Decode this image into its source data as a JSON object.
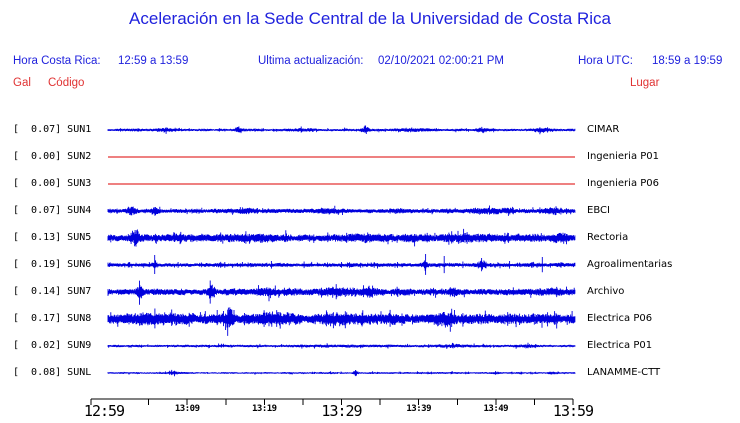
{
  "header": {
    "title": "Aceleración en la Sede Central de la Universidad de Costa Rica",
    "hora_cr_label": "Hora Costa Rica:",
    "hora_cr_value": "12:59 a 13:59",
    "update_label": "Ultima actualización:",
    "update_value": "02/10/2021 02:00:21 PM",
    "utc_label": "Hora UTC:",
    "utc_value": "18:59 a 19:59"
  },
  "columns": {
    "gal": "Gal",
    "codigo": "Código",
    "lugar": "Lugar"
  },
  "colors": {
    "text_blue": "#2022dd",
    "text_red": "#e03333",
    "trace_blue": "#0000dd",
    "trace_red": "#dd0000",
    "axis": "#000000"
  },
  "chart_data": {
    "type": "line",
    "title": "Aceleración en la Sede Central de la Universidad de Costa Rica",
    "y_unit": "Gal",
    "x_axis": {
      "start_label": "12:59",
      "end_label": "13:59",
      "tick_interval_minutes": 5,
      "num_slots": 13,
      "tick_labels": [
        {
          "text": "12:59",
          "slot": 0,
          "size": "large"
        },
        {
          "text": "13:09",
          "slot": 2,
          "size": "small"
        },
        {
          "text": "13:19",
          "slot": 4,
          "size": "small"
        },
        {
          "text": "13:29",
          "slot": 6,
          "size": "large"
        },
        {
          "text": "13:39",
          "slot": 8,
          "size": "small"
        },
        {
          "text": "13:49",
          "slot": 10,
          "size": "small"
        },
        {
          "text": "13:59",
          "slot": 12,
          "size": "large"
        }
      ]
    },
    "series": [
      {
        "code": "SUN1",
        "gal": "0.07",
        "place": "CIMAR",
        "flat": false,
        "seed": 11,
        "waveform": {
          "base_amp": 0.8,
          "bursts": [
            [
              0.12,
              0.02,
              0.7
            ],
            [
              0.28,
              0.008,
              1.5
            ],
            [
              0.42,
              0.03,
              0.5
            ],
            [
              0.55,
              0.008,
              1.8
            ],
            [
              0.65,
              0.04,
              0.6
            ],
            [
              0.8,
              0.01,
              1.2
            ],
            [
              0.93,
              0.02,
              0.8
            ]
          ],
          "spikes": [
            [
              0.28,
              2.5
            ],
            [
              0.55,
              3
            ]
          ]
        }
      },
      {
        "code": "SUN2",
        "gal": "0.00",
        "place": "Ingenieria P01",
        "flat": true,
        "seed": 2
      },
      {
        "code": "SUN3",
        "gal": "0.00",
        "place": "Ingenieria P06",
        "flat": true,
        "seed": 3
      },
      {
        "code": "SUN4",
        "gal": "0.07",
        "place": "EBCI",
        "flat": false,
        "seed": 44,
        "waveform": {
          "base_amp": 1.3,
          "bursts": [
            [
              0.05,
              0.01,
              2.0
            ],
            [
              0.1,
              0.008,
              1.5
            ],
            [
              0.3,
              0.02,
              0.8
            ],
            [
              0.47,
              0.03,
              1.0
            ],
            [
              0.62,
              0.02,
              0.6
            ],
            [
              0.82,
              0.05,
              1.0
            ],
            [
              0.95,
              0.02,
              1.0
            ]
          ],
          "spikes": [
            [
              0.05,
              3.5
            ],
            [
              0.32,
              3
            ]
          ]
        }
      },
      {
        "code": "SUN5",
        "gal": "0.13",
        "place": "Rectoria",
        "flat": false,
        "seed": 55,
        "waveform": {
          "base_amp": 2.3,
          "bursts": [
            [
              0.06,
              0.006,
              4
            ],
            [
              0.3,
              0.05,
              0.8
            ],
            [
              0.55,
              0.04,
              0.6
            ],
            [
              0.75,
              0.04,
              0.8
            ],
            [
              0.97,
              0.015,
              1.5
            ]
          ],
          "spikes": [
            [
              0.058,
              8
            ]
          ]
        }
      },
      {
        "code": "SUN6",
        "gal": "0.19",
        "place": "Agroalimentarias",
        "flat": false,
        "seed": 66,
        "waveform": {
          "base_amp": 1.2,
          "bursts": [
            [
              0.1,
              0.005,
              2
            ],
            [
              0.68,
              0.006,
              3
            ],
            [
              0.8,
              0.01,
              2
            ]
          ],
          "spikes": [
            [
              0.1,
              10
            ],
            [
              0.15,
              3
            ],
            [
              0.2,
              2.5
            ],
            [
              0.25,
              3
            ],
            [
              0.3,
              2.5
            ],
            [
              0.35,
              4
            ],
            [
              0.42,
              3.5
            ],
            [
              0.47,
              2.5
            ],
            [
              0.5,
              3
            ],
            [
              0.57,
              3
            ],
            [
              0.62,
              3
            ],
            [
              0.68,
              11
            ],
            [
              0.72,
              9
            ],
            [
              0.76,
              3.5
            ],
            [
              0.8,
              7
            ],
            [
              0.86,
              4
            ],
            [
              0.93,
              8
            ],
            [
              0.97,
              3
            ]
          ]
        }
      },
      {
        "code": "SUN7",
        "gal": "0.14",
        "place": "Archivo",
        "flat": false,
        "seed": 77,
        "waveform": {
          "base_amp": 1.9,
          "bursts": [
            [
              0.068,
              0.006,
              3.5
            ],
            [
              0.22,
              0.006,
              3
            ],
            [
              0.35,
              0.04,
              0.8
            ],
            [
              0.5,
              0.05,
              1.2
            ],
            [
              0.56,
              0.01,
              1.8
            ],
            [
              0.74,
              0.008,
              1.6
            ],
            [
              0.95,
              0.02,
              0.8
            ]
          ],
          "spikes": [
            [
              0.068,
              7
            ],
            [
              0.22,
              6
            ],
            [
              0.56,
              4
            ]
          ]
        }
      },
      {
        "code": "SUN8",
        "gal": "0.17",
        "place": "Electrica P06",
        "flat": false,
        "seed": 88,
        "waveform": {
          "base_amp": 3.0,
          "bursts": [
            [
              0.1,
              0.06,
              1.5
            ],
            [
              0.26,
              0.008,
              4
            ],
            [
              0.35,
              0.05,
              1.5
            ],
            [
              0.5,
              0.04,
              1.5
            ],
            [
              0.6,
              0.02,
              1
            ],
            [
              0.72,
              0.02,
              2.5
            ],
            [
              0.9,
              0.04,
              0.8
            ]
          ],
          "spikes": [
            [
              0.26,
              9
            ],
            [
              0.72,
              7
            ]
          ]
        }
      },
      {
        "code": "SUN9",
        "gal": "0.02",
        "place": "Electrica P01",
        "flat": false,
        "seed": 99,
        "waveform": {
          "base_amp": 0.75,
          "bursts": [
            [
              0.5,
              0.1,
              0.3
            ],
            [
              0.75,
              0.06,
              0.4
            ],
            [
              0.9,
              0.03,
              0.4
            ]
          ],
          "spikes": []
        }
      },
      {
        "code": "SUNL",
        "gal": "0.08",
        "place": "LANAMME-CTT",
        "flat": false,
        "seed": 111,
        "waveform": {
          "base_amp": 0.6,
          "bursts": [
            [
              0.14,
              0.01,
              0.6
            ],
            [
              0.53,
              0.004,
              1.5
            ],
            [
              0.83,
              0.01,
              0.5
            ],
            [
              0.95,
              0.01,
              0.5
            ]
          ],
          "spikes": [
            [
              0.53,
              3
            ],
            [
              0.83,
              2
            ]
          ]
        }
      }
    ]
  }
}
